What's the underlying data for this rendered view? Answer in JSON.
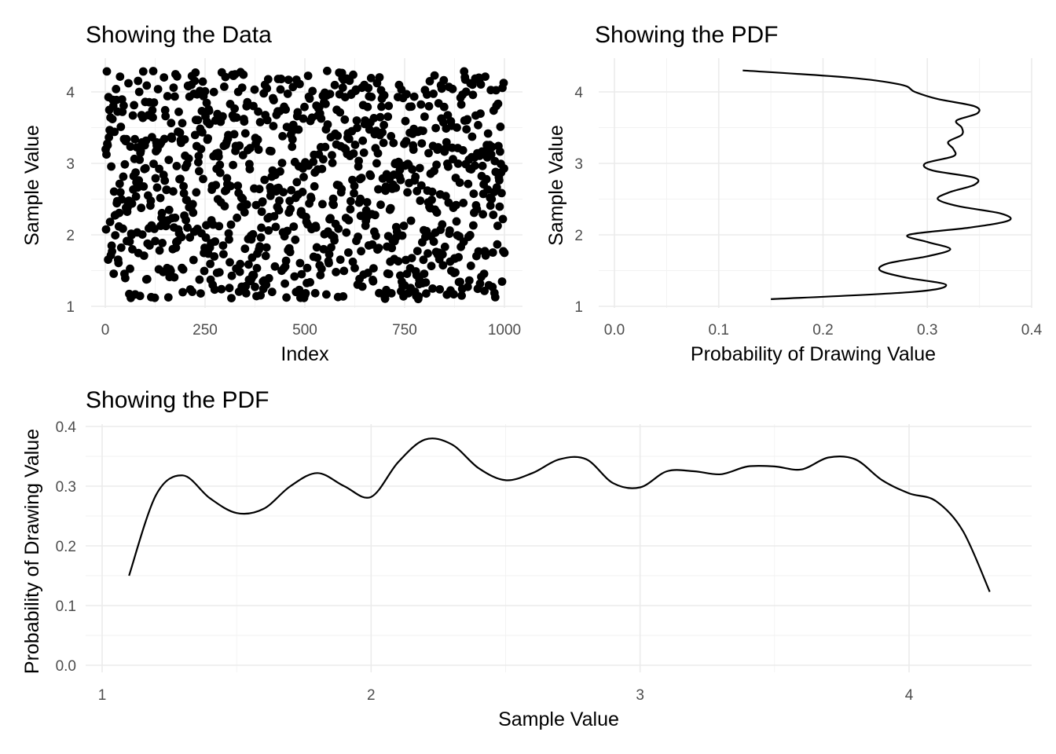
{
  "chart_data": [
    {
      "type": "scatter",
      "title": "Showing the Data",
      "xlabel": "Index",
      "ylabel": "Sample Value",
      "xlim": [
        0,
        1000
      ],
      "ylim": [
        1.1,
        4.3
      ],
      "x_ticks": [
        0,
        250,
        500,
        750,
        1000
      ],
      "y_ticks": [
        1,
        2,
        3,
        4
      ],
      "grid": true,
      "n_points": 1000,
      "y_distribution_note": "uniform-like spread between about 1.1 and 4.3"
    },
    {
      "type": "line",
      "title": "Showing the PDF",
      "xlabel": "Probability of Drawing Value",
      "ylabel": "Sample Value",
      "xlim": [
        0,
        0.4
      ],
      "ylim": [
        1.1,
        4.3
      ],
      "x_ticks": [
        0.0,
        0.1,
        0.2,
        0.3,
        0.4
      ],
      "y_ticks": [
        1,
        2,
        3,
        4
      ],
      "grid": true,
      "orientation": "density on x, sample value on y"
    },
    {
      "type": "line",
      "title": "Showing the PDF",
      "xlabel": "Sample Value",
      "ylabel": "Probability of Drawing Value",
      "xlim": [
        1,
        4.45
      ],
      "ylim": [
        0,
        0.4
      ],
      "x_ticks": [
        1,
        2,
        3,
        4
      ],
      "y_ticks": [
        0.0,
        0.1,
        0.2,
        0.3,
        0.4
      ],
      "grid": true
    }
  ],
  "density": {
    "x": [
      1.1,
      1.2,
      1.3,
      1.4,
      1.5,
      1.6,
      1.7,
      1.8,
      1.9,
      2.0,
      2.1,
      2.2,
      2.3,
      2.4,
      2.5,
      2.6,
      2.7,
      2.8,
      2.9,
      3.0,
      3.1,
      3.2,
      3.3,
      3.4,
      3.5,
      3.6,
      3.7,
      3.8,
      3.9,
      4.0,
      4.1,
      4.2,
      4.3
    ],
    "y": [
      0.15,
      0.285,
      0.318,
      0.28,
      0.255,
      0.262,
      0.3,
      0.322,
      0.3,
      0.282,
      0.34,
      0.378,
      0.37,
      0.33,
      0.31,
      0.322,
      0.345,
      0.345,
      0.305,
      0.298,
      0.325,
      0.325,
      0.32,
      0.333,
      0.333,
      0.328,
      0.348,
      0.345,
      0.31,
      0.288,
      0.275,
      0.225,
      0.123
    ]
  },
  "labels": {
    "p1_title": "Showing the Data",
    "p1_xlabel": "Index",
    "p1_ylabel": "Sample Value",
    "p2_title": "Showing the PDF",
    "p2_xlabel": "Probability of Drawing Value",
    "p2_ylabel": "Sample Value",
    "p3_title": "Showing the PDF",
    "p3_xlabel": "Sample Value",
    "p3_ylabel": "Probability of Drawing Value"
  }
}
